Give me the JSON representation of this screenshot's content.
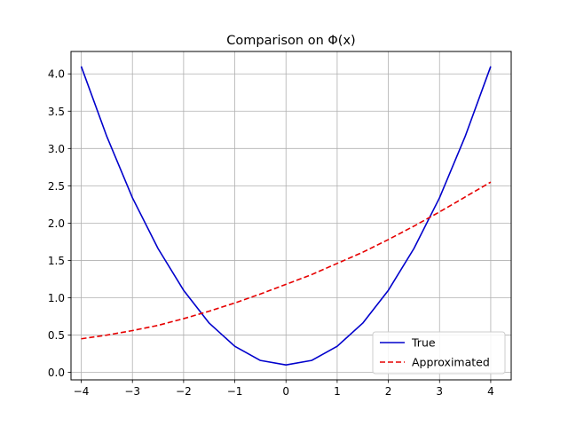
{
  "chart_data": {
    "type": "line",
    "title": "Comparison on Φ(x)",
    "xlabel": "",
    "ylabel": "",
    "xlim": [
      -4.2,
      4.4
    ],
    "ylim": [
      -0.1,
      4.3
    ],
    "grid": true,
    "legend_position": "lower right",
    "x_ticks": [
      -4,
      -3,
      -2,
      -1,
      0,
      1,
      2,
      3,
      4
    ],
    "x_tick_labels": [
      "−4",
      "−3",
      "−2",
      "−1",
      "0",
      "1",
      "2",
      "3",
      "4"
    ],
    "y_ticks": [
      0.0,
      0.5,
      1.0,
      1.5,
      2.0,
      2.5,
      3.0,
      3.5,
      4.0
    ],
    "y_tick_labels": [
      "0.0",
      "0.5",
      "1.0",
      "1.5",
      "2.0",
      "2.5",
      "3.0",
      "3.5",
      "4.0"
    ],
    "x": [
      -4,
      -3.5,
      -3,
      -2.5,
      -2,
      -1.5,
      -1,
      -0.5,
      0,
      0.5,
      1,
      1.5,
      2,
      2.5,
      3,
      3.5,
      4
    ],
    "series": [
      {
        "name": "True",
        "color": "#0000cc",
        "style": "solid",
        "values": [
          4.1,
          3.16,
          2.34,
          1.66,
          1.1,
          0.66,
          0.35,
          0.16,
          0.1,
          0.16,
          0.35,
          0.66,
          1.1,
          1.66,
          2.34,
          3.16,
          4.1
        ]
      },
      {
        "name": "Approximated",
        "color": "#e60000",
        "style": "dashed",
        "values": [
          0.45,
          0.5,
          0.56,
          0.63,
          0.72,
          0.82,
          0.93,
          1.05,
          1.18,
          1.31,
          1.46,
          1.61,
          1.78,
          1.96,
          2.15,
          2.35,
          2.55
        ]
      }
    ]
  }
}
